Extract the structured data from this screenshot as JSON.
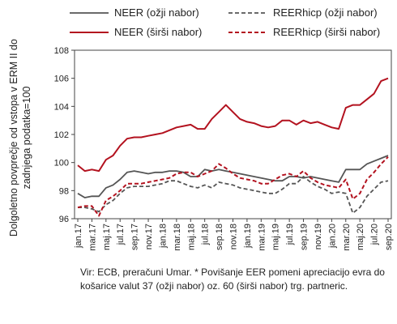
{
  "chart_data": {
    "type": "line",
    "ylabel": "Dolgoletno povprečje od vstopa v ERM II do zadnjega podatka=100",
    "ylim": [
      96,
      108
    ],
    "yticks": [
      96,
      98,
      100,
      102,
      104,
      106,
      108
    ],
    "x_tick_labels": [
      "jan.17",
      "mar.17",
      "maj.17",
      "jul.17",
      "sep.17",
      "nov.17",
      "jan.18",
      "mar.18",
      "maj.18",
      "jul.18",
      "sep.18",
      "nov.18",
      "jan.19",
      "mar.19",
      "maj.19",
      "jul.19",
      "sep.19",
      "nov.19",
      "jan.20",
      "mar.20",
      "maj.20",
      "jul.20",
      "sep.20"
    ],
    "x": [
      "jan.17",
      "feb.17",
      "mar.17",
      "apr.17",
      "maj.17",
      "jun.17",
      "jul.17",
      "avg.17",
      "sep.17",
      "okt.17",
      "nov.17",
      "dec.17",
      "jan.18",
      "feb.18",
      "mar.18",
      "apr.18",
      "maj.18",
      "jun.18",
      "jul.18",
      "avg.18",
      "sep.18",
      "okt.18",
      "nov.18",
      "dec.18",
      "jan.19",
      "feb.19",
      "mar.19",
      "apr.19",
      "maj.19",
      "jun.19",
      "jul.19",
      "avg.19",
      "sep.19",
      "okt.19",
      "nov.19",
      "dec.19",
      "jan.20",
      "feb.20",
      "mar.20",
      "apr.20",
      "maj.20",
      "jun.20",
      "jul.20",
      "avg.20",
      "sep.20"
    ],
    "series": [
      {
        "name": "NEER (ožji nabor)",
        "color": "#555555",
        "dash": "solid",
        "values": [
          97.8,
          97.5,
          97.6,
          97.6,
          98.2,
          98.4,
          98.8,
          99.3,
          99.4,
          99.3,
          99.2,
          99.3,
          99.3,
          99.4,
          99.4,
          99.3,
          99.0,
          99.0,
          99.5,
          99.4,
          99.5,
          99.4,
          99.3,
          99.2,
          99.1,
          99.0,
          98.9,
          98.8,
          98.7,
          98.7,
          99.0,
          99.0,
          98.9,
          99.0,
          98.9,
          98.8,
          98.7,
          98.6,
          99.5,
          99.5,
          99.5,
          99.9,
          100.1,
          100.3,
          100.5
        ]
      },
      {
        "name": "REERhicp (ožji nabor)",
        "color": "#555555",
        "dash": "dashed",
        "values": [
          96.8,
          96.8,
          96.7,
          96.5,
          97.0,
          97.3,
          97.8,
          98.2,
          98.3,
          98.3,
          98.3,
          98.4,
          98.5,
          98.7,
          98.7,
          98.5,
          98.3,
          98.2,
          98.4,
          98.2,
          98.6,
          98.5,
          98.4,
          98.2,
          98.1,
          98.0,
          97.9,
          97.8,
          97.8,
          98.1,
          98.5,
          98.5,
          99.0,
          98.6,
          98.3,
          98.1,
          97.8,
          97.9,
          97.8,
          96.4,
          96.8,
          97.6,
          98.1,
          98.6,
          98.7
        ]
      },
      {
        "name": "NEER (širši nabor)",
        "color": "#b3121f",
        "dash": "solid",
        "values": [
          99.8,
          99.4,
          99.5,
          99.4,
          100.2,
          100.5,
          101.2,
          101.7,
          101.8,
          101.8,
          101.9,
          102.0,
          102.1,
          102.3,
          102.5,
          102.6,
          102.7,
          102.4,
          102.4,
          103.1,
          103.6,
          104.1,
          103.6,
          103.1,
          102.9,
          102.8,
          102.6,
          102.5,
          102.6,
          103.0,
          103.0,
          102.7,
          103.0,
          102.8,
          102.9,
          102.7,
          102.5,
          102.4,
          103.9,
          104.1,
          104.1,
          104.5,
          104.9,
          105.8,
          106.0
        ]
      },
      {
        "name": "REERhicp (širši nabor)",
        "color": "#b3121f",
        "dash": "dashed",
        "values": [
          96.8,
          96.9,
          96.9,
          96.2,
          97.3,
          97.6,
          98.0,
          98.5,
          98.5,
          98.5,
          98.6,
          98.7,
          98.8,
          98.9,
          99.2,
          99.3,
          99.3,
          99.0,
          99.2,
          99.4,
          99.9,
          99.6,
          99.2,
          98.9,
          98.8,
          98.7,
          98.5,
          98.5,
          98.8,
          99.1,
          99.2,
          99.0,
          99.4,
          98.9,
          98.6,
          98.4,
          98.3,
          98.2,
          98.8,
          97.4,
          97.8,
          98.8,
          99.3,
          99.9,
          100.4
        ]
      }
    ]
  },
  "note": "Vir: ECB, preračuni Umar. * Povišanje EER pomeni apreciacijo evra do košarice valut 37 (ožji nabor) oz. 60 (širši nabor) trg. partneric."
}
